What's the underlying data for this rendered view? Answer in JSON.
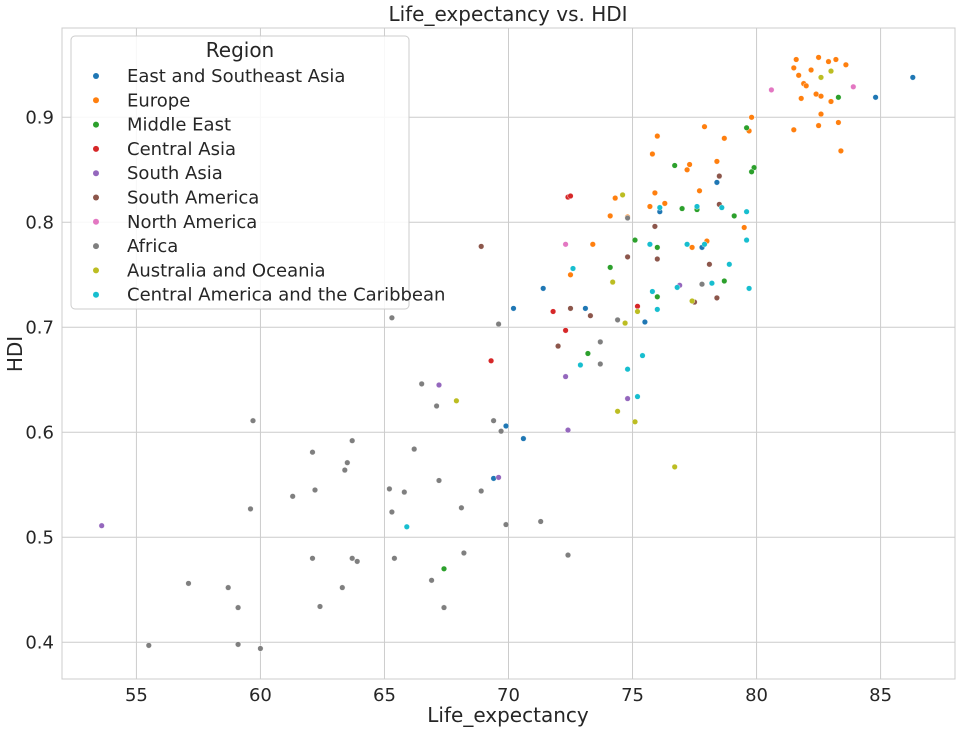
{
  "chart_data": {
    "type": "scatter",
    "title": "Life_expectancy vs. HDI",
    "xlabel": "Life_expectancy",
    "ylabel": "HDI",
    "xlim": [
      52.0,
      88.0
    ],
    "ylim": [
      0.365,
      0.985
    ],
    "xticks": [
      "55",
      "60",
      "65",
      "70",
      "75",
      "80",
      "85"
    ],
    "yticks": [
      "0.4",
      "0.5",
      "0.6",
      "0.7",
      "0.8",
      "0.9"
    ],
    "grid": true,
    "legend": {
      "title": "Region",
      "placement": "top-left"
    },
    "series": [
      {
        "name": "East and Southeast Asia",
        "color": "#1f77b4",
        "x": [
          86.3,
          84.8,
          78.4,
          77.8,
          75.5,
          71.4,
          70.2,
          73.1,
          69.9,
          70.6,
          69.4,
          76.1
        ],
        "y": [
          0.938,
          0.919,
          0.838,
          0.776,
          0.705,
          0.737,
          0.718,
          0.718,
          0.606,
          0.594,
          0.556,
          0.81
        ]
      },
      {
        "name": "Europe",
        "color": "#ff7f0e",
        "x": [
          81.6,
          81.7,
          81.9,
          82.2,
          82.5,
          82.9,
          83.2,
          83.6,
          81.5,
          81.8,
          82.0,
          82.6,
          83.0,
          82.4,
          82.6,
          83.3,
          81.5,
          82.5,
          83.4,
          79.8,
          79.7,
          78.7,
          77.9,
          76.0,
          75.8,
          78.4,
          77.3,
          77.2,
          75.9,
          74.3,
          74.8,
          76.3,
          75.7,
          73.4,
          74.1,
          77.7,
          79.5,
          78.0,
          77.4,
          72.5
        ],
        "y": [
          0.955,
          0.94,
          0.932,
          0.945,
          0.957,
          0.953,
          0.955,
          0.95,
          0.947,
          0.918,
          0.93,
          0.92,
          0.915,
          0.922,
          0.903,
          0.895,
          0.888,
          0.892,
          0.868,
          0.9,
          0.887,
          0.88,
          0.891,
          0.882,
          0.865,
          0.858,
          0.855,
          0.85,
          0.828,
          0.823,
          0.805,
          0.818,
          0.815,
          0.779,
          0.806,
          0.83,
          0.795,
          0.782,
          0.776,
          0.75
        ]
      },
      {
        "name": "Middle East",
        "color": "#2ca02c",
        "x": [
          83.3,
          79.6,
          79.9,
          79.8,
          76.7,
          77.0,
          77.6,
          75.1,
          74.1,
          76.0,
          76.0,
          79.1,
          78.7,
          73.2,
          67.4
        ],
        "y": [
          0.919,
          0.89,
          0.852,
          0.848,
          0.854,
          0.813,
          0.812,
          0.783,
          0.757,
          0.729,
          0.776,
          0.806,
          0.744,
          0.675,
          0.47
        ]
      },
      {
        "name": "Central Asia",
        "color": "#d62728",
        "x": [
          72.4,
          72.5,
          71.8,
          72.3,
          69.3,
          75.2
        ],
        "y": [
          0.824,
          0.825,
          0.715,
          0.697,
          0.668,
          0.72
        ]
      },
      {
        "name": "South Asia",
        "color": "#9467bd",
        "x": [
          53.6,
          67.2,
          69.6,
          72.3,
          72.4,
          74.8,
          76.9
        ],
        "y": [
          0.511,
          0.645,
          0.557,
          0.653,
          0.602,
          0.632,
          0.74
        ]
      },
      {
        "name": "South America",
        "color": "#8c564b",
        "x": [
          68.9,
          78.5,
          76.0,
          78.1,
          75.9,
          72.5,
          73.3,
          72.0,
          74.8,
          78.4,
          78.5,
          77.5
        ],
        "y": [
          0.777,
          0.817,
          0.765,
          0.76,
          0.796,
          0.718,
          0.711,
          0.682,
          0.767,
          0.728,
          0.844,
          0.724
        ]
      },
      {
        "name": "North America",
        "color": "#e377c2",
        "x": [
          83.9,
          80.6,
          72.3
        ],
        "y": [
          0.929,
          0.926,
          0.779
        ]
      },
      {
        "name": "Africa",
        "color": "#7f7f7f",
        "x": [
          55.5,
          57.1,
          58.7,
          59.1,
          59.1,
          60.0,
          59.6,
          59.7,
          61.3,
          62.1,
          62.1,
          62.2,
          62.4,
          63.3,
          63.4,
          63.5,
          63.7,
          63.7,
          63.9,
          65.2,
          65.3,
          65.4,
          65.8,
          66.2,
          66.5,
          66.9,
          67.1,
          67.2,
          67.4,
          68.1,
          68.2,
          68.9,
          69.4,
          69.6,
          69.7,
          69.9,
          71.3,
          72.4,
          74.4,
          74.8,
          73.7,
          73.7,
          65.3,
          77.8
        ],
        "y": [
          0.397,
          0.456,
          0.452,
          0.433,
          0.398,
          0.394,
          0.527,
          0.611,
          0.539,
          0.581,
          0.48,
          0.545,
          0.434,
          0.452,
          0.564,
          0.571,
          0.592,
          0.48,
          0.477,
          0.546,
          0.524,
          0.48,
          0.543,
          0.584,
          0.646,
          0.459,
          0.625,
          0.554,
          0.433,
          0.528,
          0.485,
          0.544,
          0.611,
          0.703,
          0.601,
          0.512,
          0.515,
          0.483,
          0.707,
          0.804,
          0.686,
          0.665,
          0.709,
          0.741
        ]
      },
      {
        "name": "Australia and Oceania",
        "color": "#bcbd22",
        "x": [
          83.0,
          82.6,
          74.6,
          74.2,
          67.9,
          74.4,
          75.1,
          76.7,
          75.2,
          77.4,
          74.7
        ],
        "y": [
          0.944,
          0.938,
          0.826,
          0.743,
          0.63,
          0.62,
          0.61,
          0.567,
          0.715,
          0.725,
          0.704
        ]
      },
      {
        "name": "Central America and the Caribbean",
        "color": "#17becf",
        "x": [
          72.6,
          72.9,
          76.1,
          77.2,
          77.6,
          77.9,
          78.2,
          78.6,
          78.9,
          79.6,
          79.6,
          75.7,
          75.8,
          76.0,
          76.8,
          75.4,
          74.8,
          75.2,
          65.9,
          79.7
        ],
        "y": [
          0.756,
          0.664,
          0.814,
          0.779,
          0.815,
          0.779,
          0.742,
          0.814,
          0.76,
          0.81,
          0.783,
          0.779,
          0.734,
          0.717,
          0.738,
          0.673,
          0.66,
          0.634,
          0.51,
          0.737
        ]
      }
    ]
  }
}
